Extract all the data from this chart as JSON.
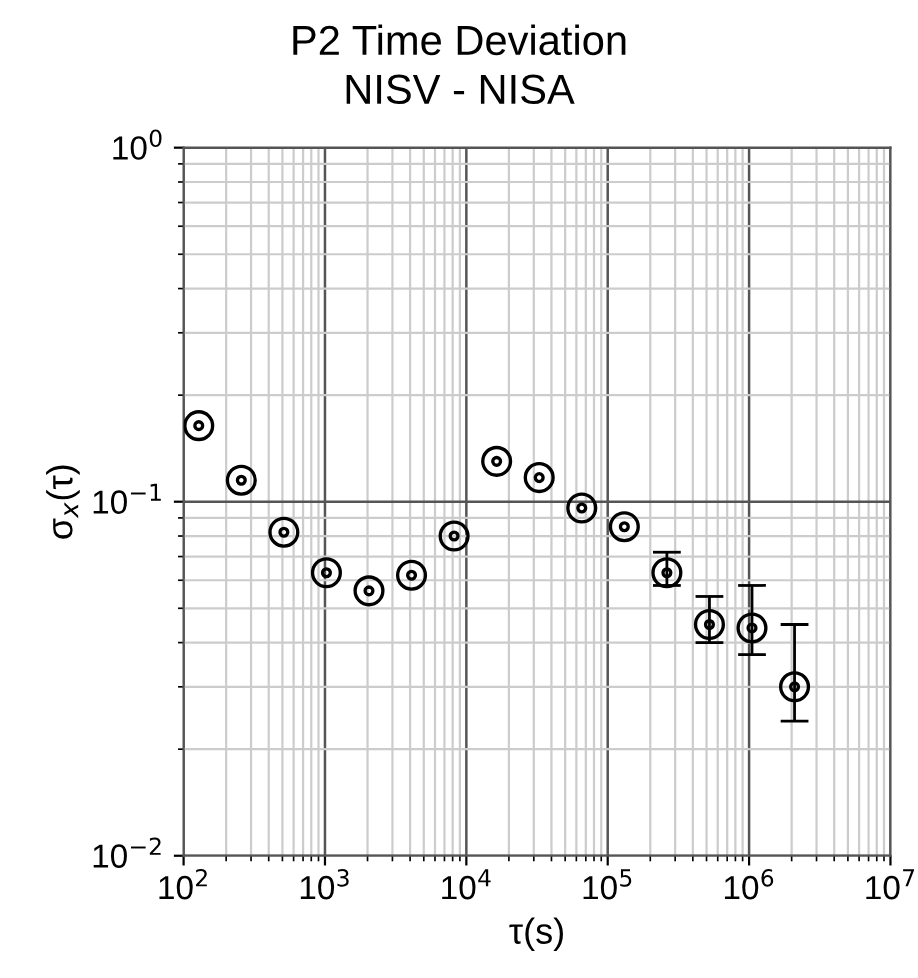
{
  "chart_data": {
    "type": "scatter",
    "title": "P2 Time Deviation",
    "subtitle": "NISV - NISA",
    "xlabel": "τ(s)",
    "ylabel": "σ$_{x}$(τ)",
    "x": [
      128,
      256,
      512,
      1024,
      2048,
      4096,
      8192,
      16384,
      32768,
      65536,
      131072,
      262144,
      524288,
      1048576,
      2097152
    ],
    "series": [
      {
        "color": "#000000",
        "values": [
          0.164,
          0.115,
          0.082,
          0.063,
          0.056,
          0.062,
          0.08,
          0.13,
          0.117,
          0.096,
          0.085,
          0.063,
          0.045,
          0.044,
          0.03
        ],
        "errors": [
          null,
          null,
          null,
          null,
          null,
          null,
          null,
          null,
          null,
          null,
          null,
          [
            0.058,
            0.072
          ],
          [
            0.04,
            0.054
          ],
          [
            0.037,
            0.058
          ],
          [
            0.024,
            0.045
          ]
        ]
      }
    ],
    "log": "xy",
    "xlim": [
      100,
      10000000
    ],
    "ylim": [
      0.01,
      1
    ],
    "xticks": [
      {
        "value": 100,
        "label": "10$^{2}$"
      },
      {
        "value": 1000,
        "label": "10$^{3}$"
      },
      {
        "value": 10000,
        "label": "10$^{4}$"
      },
      {
        "value": 100000,
        "label": "10$^{5}$"
      },
      {
        "value": 1000000,
        "label": "10$^{6}$"
      },
      {
        "value": 10000000,
        "label": "10$^{7}$"
      }
    ],
    "yticks": [
      {
        "value": 0.01,
        "label": "10$^{−2}$"
      },
      {
        "value": 0.1,
        "label": "10$^{−1}$"
      },
      {
        "value": 1,
        "label": "10$^{0}$"
      }
    ],
    "grid": true,
    "marker": "circle",
    "legend": false
  }
}
